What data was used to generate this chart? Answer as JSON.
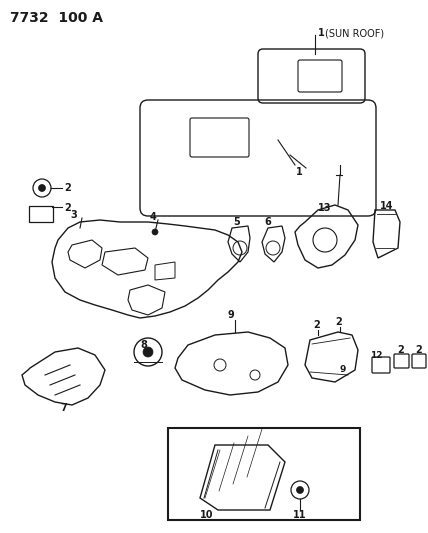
{
  "title_code": "7732  100 A",
  "bg_color": "#ffffff",
  "line_color": "#1a1a1a",
  "fig_width": 4.28,
  "fig_height": 5.33,
  "dpi": 100
}
